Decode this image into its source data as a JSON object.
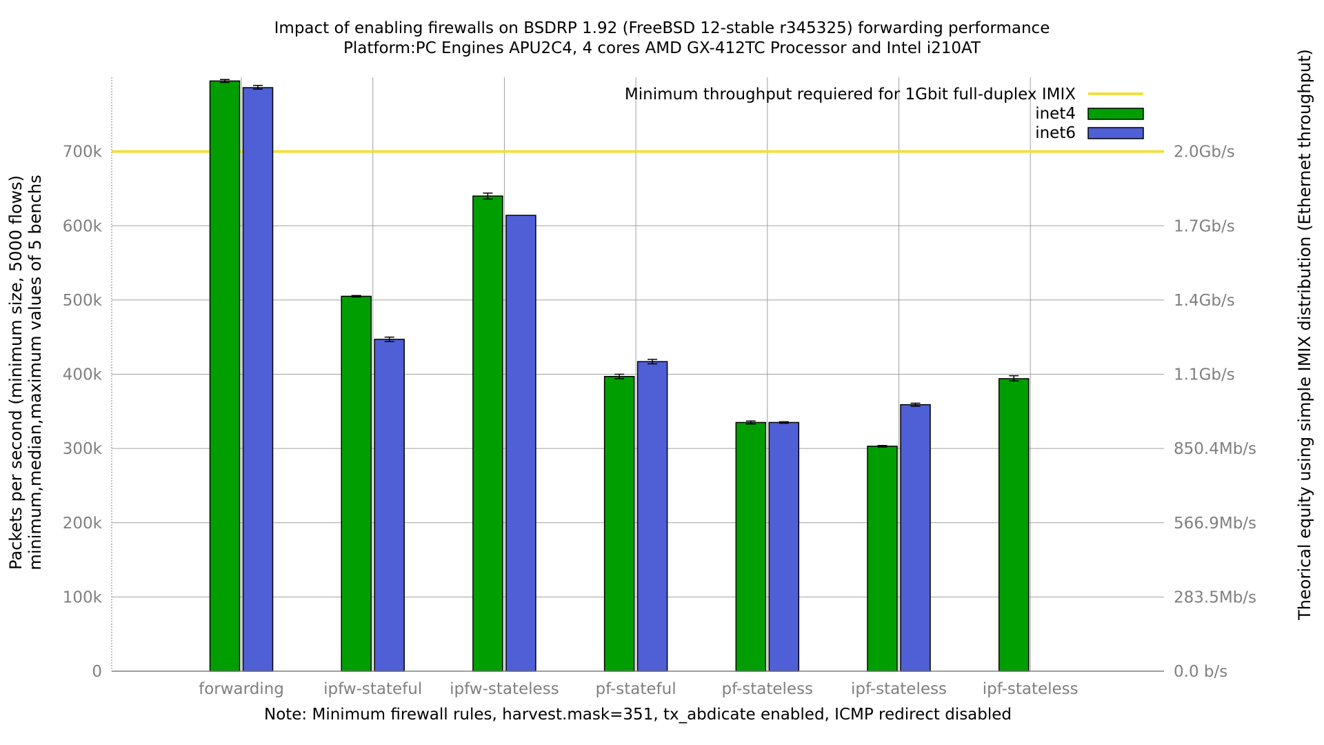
{
  "chart_data": {
    "type": "bar",
    "title": "Impact of enabling firewalls on BSDRP 1.92 (FreeBSD 12-stable r345325) forwarding performance",
    "subtitle": "Platform:PC Engines APU2C4, 4 cores AMD GX-412TC Processor and Intel i210AT",
    "xlabel": "Note: Minimum firewall rules, harvest.mask=351, tx_abdicate enabled, ICMP redirect disabled",
    "ylabel": [
      "Packets per second (minimum size, 5000 flows)",
      "minimum,median,maximum values of 5 benchs"
    ],
    "y2label": "Theorical equity using simple IMIX distribution (Ethernet throughput)",
    "categories": [
      "forwarding",
      "ipfw-stateful",
      "ipfw-stateless",
      "pf-stateful",
      "pf-stateless",
      "ipf-stateless",
      "ipf-stateless"
    ],
    "ylim": [
      0,
      800000
    ],
    "yticks": [
      {
        "value": 0,
        "label": "0"
      },
      {
        "value": 100000,
        "label": "100k"
      },
      {
        "value": 200000,
        "label": "200k"
      },
      {
        "value": 300000,
        "label": "300k"
      },
      {
        "value": 400000,
        "label": "400k"
      },
      {
        "value": 500000,
        "label": "500k"
      },
      {
        "value": 600000,
        "label": "600k"
      },
      {
        "value": 700000,
        "label": "700k"
      }
    ],
    "y2ticks": [
      {
        "value": 0,
        "label": "0.0 b/s"
      },
      {
        "value": 100000,
        "label": "283.5Mb/s"
      },
      {
        "value": 200000,
        "label": "566.9Mb/s"
      },
      {
        "value": 300000,
        "label": "850.4Mb/s"
      },
      {
        "value": 400000,
        "label": "1.1Gb/s"
      },
      {
        "value": 500000,
        "label": "1.4Gb/s"
      },
      {
        "value": 600000,
        "label": "1.7Gb/s"
      },
      {
        "value": 700000,
        "label": "2.0Gb/s"
      }
    ],
    "series": [
      {
        "name": "inet4",
        "color": "#009e00",
        "values": [
          795000,
          505000,
          640000,
          397000,
          335000,
          303000,
          394000
        ],
        "min": [
          793000,
          504000,
          636000,
          394000,
          333000,
          302000,
          391000
        ],
        "max": [
          797000,
          506000,
          644000,
          400000,
          337000,
          304000,
          398000
        ]
      },
      {
        "name": "inet6",
        "color": "#4f5fd5",
        "values": [
          786000,
          447000,
          614000,
          417000,
          335000,
          359000,
          null
        ],
        "min": [
          784000,
          444000,
          614000,
          414000,
          334000,
          357000,
          null
        ],
        "max": [
          789000,
          450000,
          614000,
          420000,
          336000,
          361000,
          null
        ]
      }
    ],
    "reference_line": {
      "name": "Minimum throughput requiered for 1Gbit full-duplex IMIX",
      "value": 700000,
      "color": "#f0e040"
    },
    "grid": true,
    "legend_position": "top-right"
  }
}
